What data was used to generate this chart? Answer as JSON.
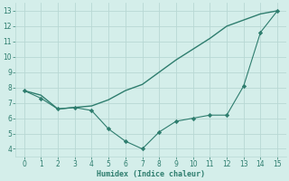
{
  "line1_x": [
    0,
    1,
    2,
    3,
    4,
    5,
    6,
    7,
    8,
    9,
    10,
    11,
    12,
    13,
    14,
    15
  ],
  "line1_y": [
    7.8,
    7.5,
    6.6,
    6.7,
    6.8,
    7.2,
    7.8,
    8.2,
    9.0,
    9.8,
    10.5,
    11.2,
    12.0,
    12.4,
    12.8,
    13.0
  ],
  "line2_x": [
    0,
    1,
    2,
    3,
    4,
    5,
    6,
    7,
    8,
    9,
    10,
    11,
    12,
    13,
    14,
    15
  ],
  "line2_y": [
    7.8,
    7.3,
    6.6,
    6.7,
    6.5,
    5.3,
    4.5,
    4.0,
    5.1,
    5.8,
    6.0,
    6.2,
    6.2,
    8.1,
    11.6,
    13.0
  ],
  "line_color": "#2e7d6e",
  "bg_color": "#d4eeea",
  "grid_color": "#b8d8d4",
  "xlabel": "Humidex (Indice chaleur)",
  "xlim": [
    -0.5,
    15.5
  ],
  "ylim": [
    3.5,
    13.5
  ],
  "xticks": [
    0,
    1,
    2,
    3,
    4,
    5,
    6,
    7,
    8,
    9,
    10,
    11,
    12,
    13,
    14,
    15
  ],
  "yticks": [
    4,
    5,
    6,
    7,
    8,
    9,
    10,
    11,
    12,
    13
  ]
}
